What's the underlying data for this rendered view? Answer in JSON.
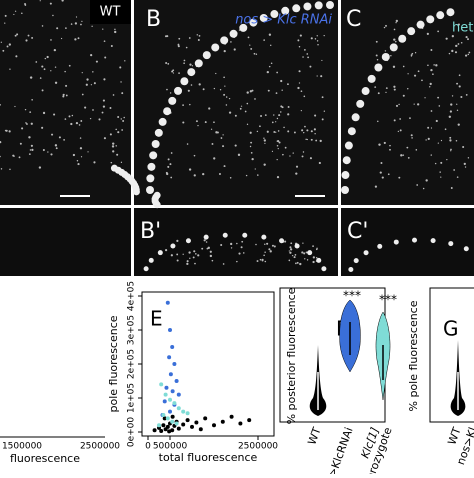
{
  "panels": {
    "a_tag": "WT",
    "b_label": "B",
    "b_genotype": "nos > Klc RNAi",
    "c_label": "C",
    "c_genotype": "het",
    "b_prime": "B'",
    "c_prime": "C'"
  },
  "left_plot": {
    "tick_1": "1500000",
    "tick_2": "2500000",
    "xlabel": "fluorescence"
  },
  "chart_data": {
    "type": "scatter",
    "label": "E",
    "xlabel": "total fluorescence",
    "ylabel": "pole fluorescence",
    "xlim": [
      0,
      2600000
    ],
    "ylim": [
      0,
      400000
    ],
    "xticks": [
      0,
      500000,
      2500000
    ],
    "yticks": [
      {
        "value": 0,
        "label": "0e+00"
      },
      {
        "value": 100000,
        "label": "1e+05"
      },
      {
        "value": 200000,
        "label": "2e+05"
      },
      {
        "value": 300000,
        "label": "3e+05"
      },
      {
        "value": 400000,
        "label": "4e+05"
      }
    ],
    "series": [
      {
        "color": "#000000",
        "x": [
          150000,
          250000,
          300000,
          350000,
          400000,
          450000,
          500000,
          550000,
          600000,
          650000,
          700000,
          800000,
          900000,
          1000000,
          1100000,
          1200000,
          1300000,
          1500000,
          1700000,
          1900000,
          2100000,
          2300000,
          380000,
          480000,
          560000
        ],
        "values": [
          5000,
          12000,
          3000,
          20000,
          8000,
          15000,
          25000,
          5000,
          18000,
          30000,
          10000,
          22000,
          35000,
          15000,
          28000,
          8000,
          40000,
          20000,
          30000,
          45000,
          25000,
          35000,
          40000,
          2000,
          45000
        ]
      },
      {
        "color": "#3a6fd8",
        "x": [
          450000,
          500000,
          550000,
          480000,
          600000,
          520000,
          650000,
          420000,
          560000,
          700000,
          380000,
          600000,
          500000,
          330000
        ],
        "values": [
          380000,
          300000,
          250000,
          220000,
          200000,
          170000,
          150000,
          130000,
          120000,
          110000,
          90000,
          80000,
          60000,
          50000
        ]
      },
      {
        "color": "#7fdcd6",
        "x": [
          300000,
          400000,
          500000,
          600000,
          700000,
          800000,
          350000,
          450000,
          900000,
          550000,
          650000,
          250000
        ],
        "values": [
          140000,
          110000,
          95000,
          85000,
          70000,
          60000,
          50000,
          40000,
          55000,
          30000,
          25000,
          20000
        ]
      }
    ]
  },
  "panel_f": {
    "label": "F",
    "ylabel": "% posterior fluorescence",
    "cat_1": "WT",
    "cat_2": "nos>KlcRNAi",
    "cat_3a": "Klc[1]",
    "cat_3b": "heterozygote",
    "sig_2": "***",
    "sig_3": "***"
  },
  "panel_g": {
    "label": "G",
    "ylabel": "% pole fluorescence",
    "cat_1": "WT",
    "cat_2": "nos>Kl"
  }
}
